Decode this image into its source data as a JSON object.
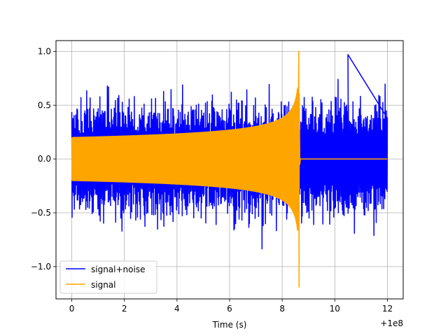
{
  "chart_data": {
    "type": "line",
    "title": "",
    "xlabel": "Time (s)",
    "ylabel": "",
    "x_offset_label": "+1e8",
    "xlim": [
      -0.6,
      12.6
    ],
    "ylim": [
      -1.3,
      1.1
    ],
    "x_ticks": [
      0,
      2,
      4,
      6,
      8,
      10,
      12
    ],
    "x_tick_labels": [
      "0",
      "2",
      "4",
      "6",
      "8",
      "10",
      "12"
    ],
    "y_ticks": [
      -1.0,
      -0.5,
      0.0,
      0.5,
      1.0
    ],
    "y_tick_labels": [
      "−1.0",
      "−0.5",
      "0.0",
      "0.5",
      "1.0"
    ],
    "grid": true,
    "legend_position": "lower-left",
    "series": [
      {
        "name": "signal+noise",
        "color": "#0000ff",
        "kind": "noisy",
        "x_range": [
          0,
          12
        ],
        "typical_peak": 0.6,
        "max": 0.97,
        "min": -1.14
      },
      {
        "name": "signal",
        "color": "#ffa500",
        "kind": "chirp",
        "x_range": [
          0,
          12
        ],
        "envelope_start": 0.2,
        "envelope_near_merger": 0.66,
        "merger_time": 8.65,
        "max": 1.0,
        "min": -1.19,
        "after_merger": 0.0
      }
    ]
  }
}
